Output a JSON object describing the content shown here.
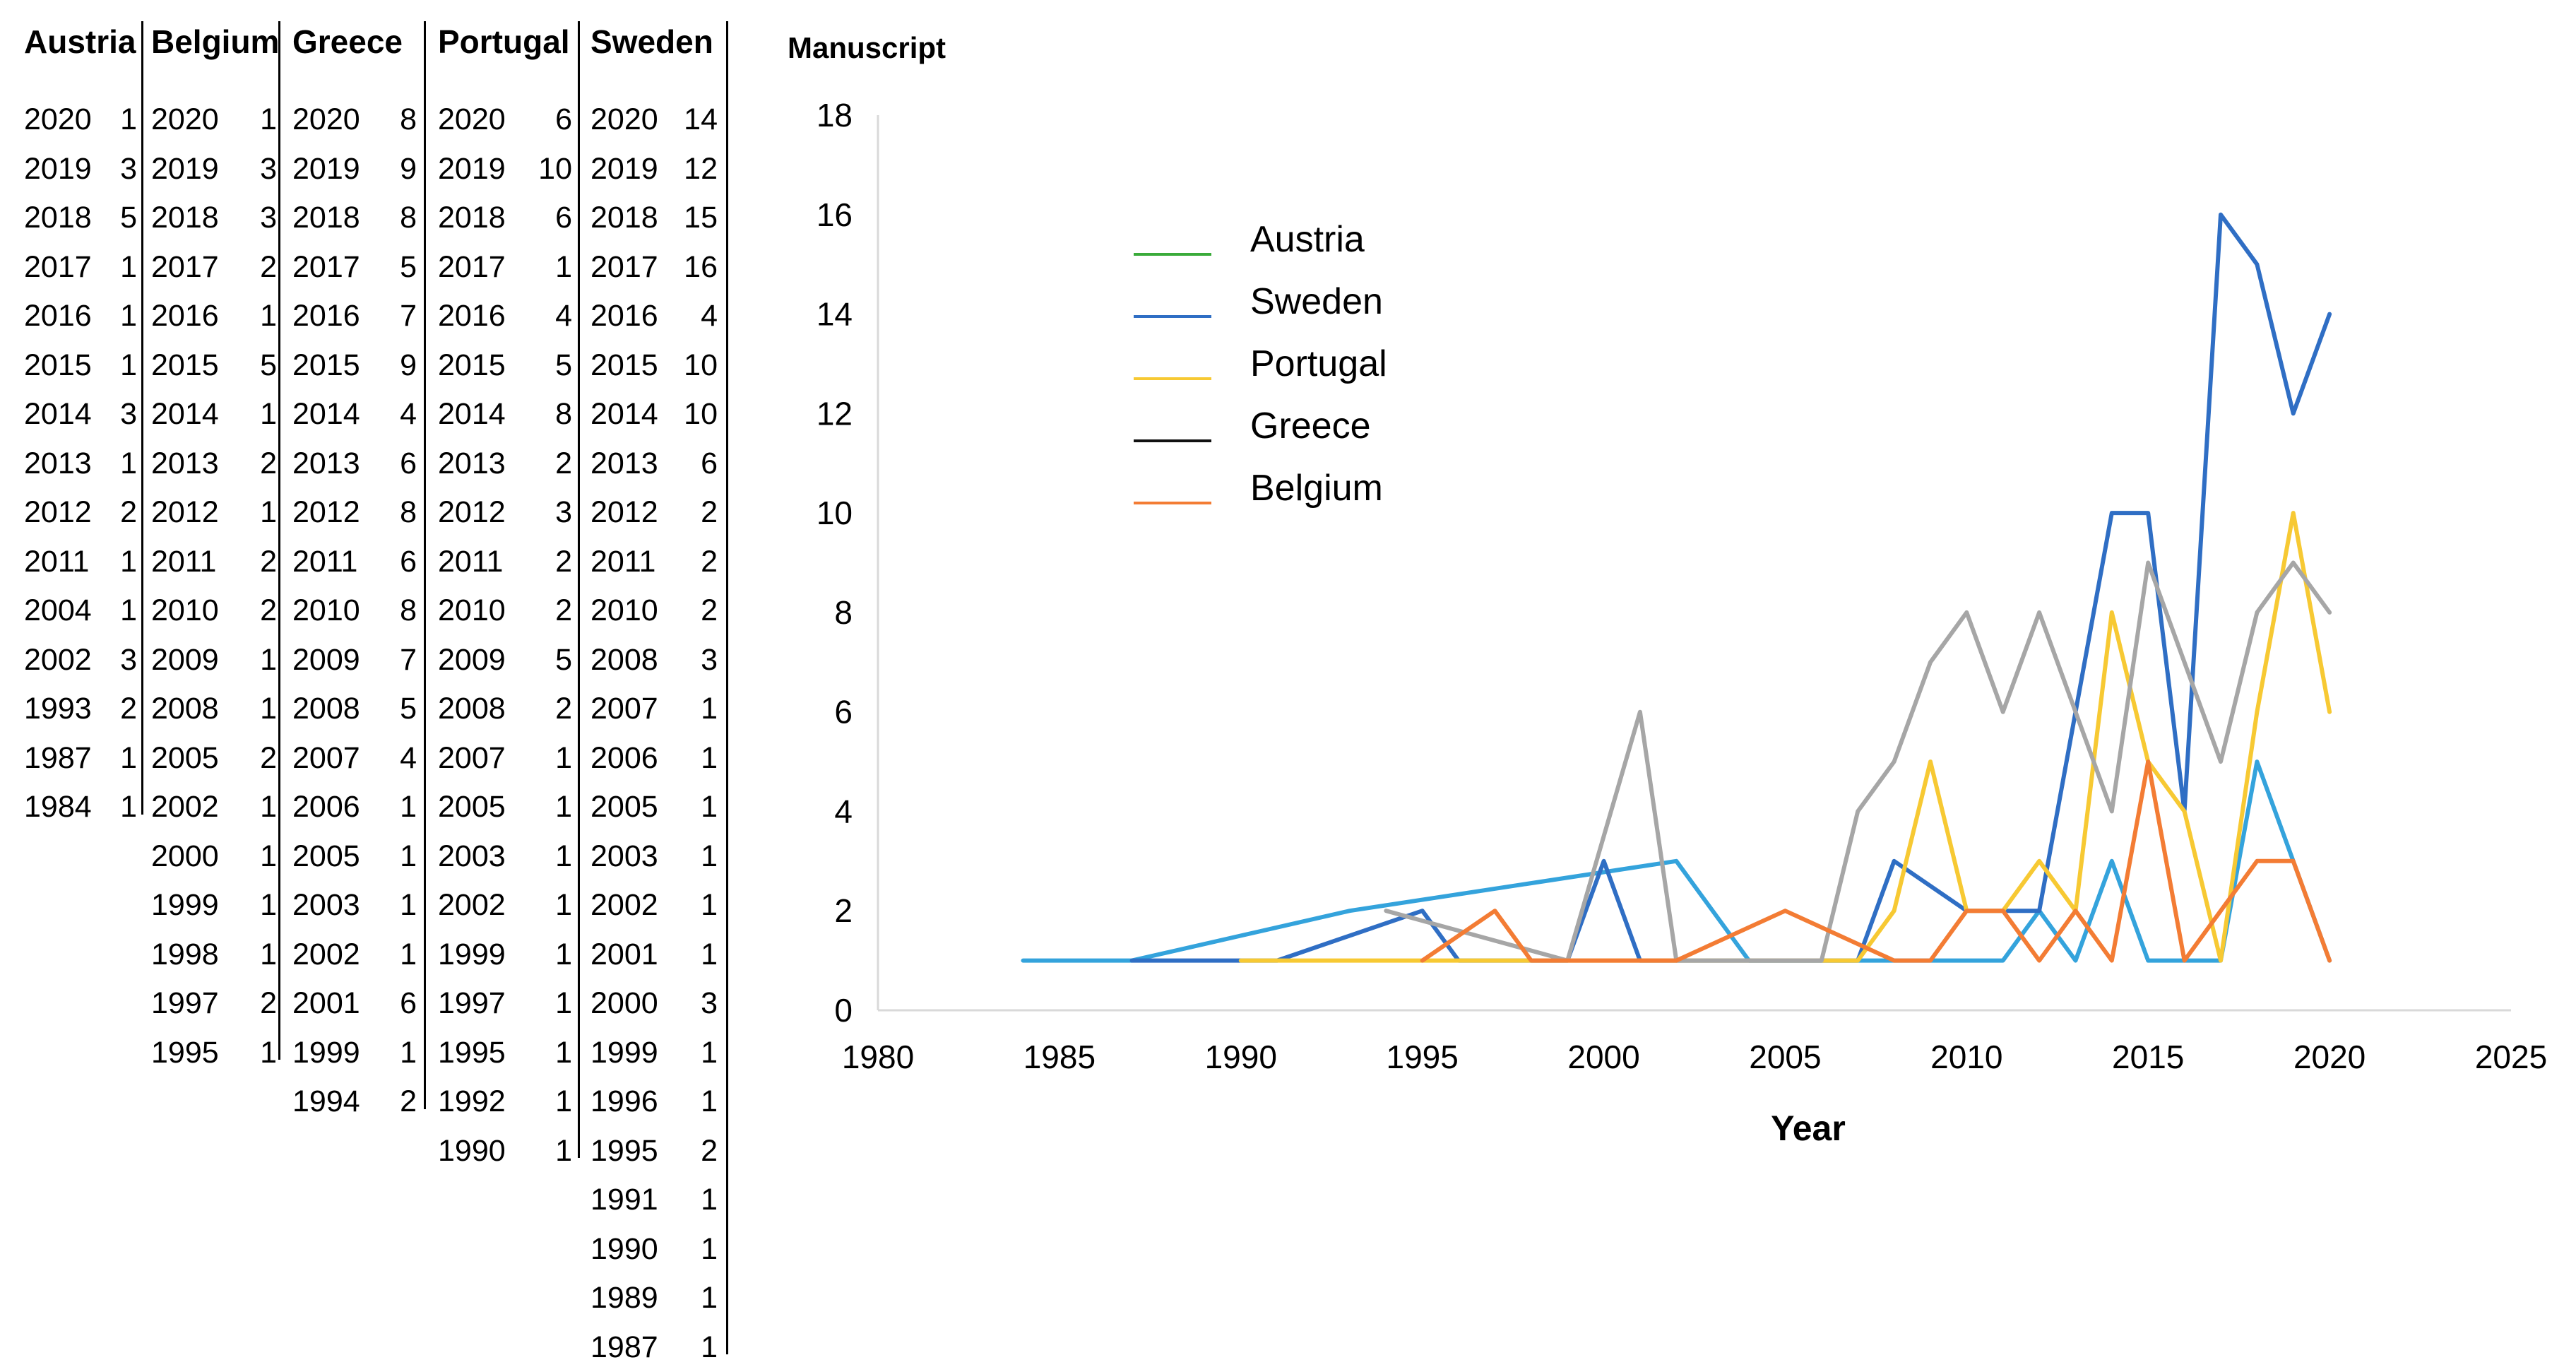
{
  "tables": [
    {
      "header": "Austria",
      "rows": [
        [
          "2020",
          "1"
        ],
        [
          "2019",
          "3"
        ],
        [
          "2018",
          "5"
        ],
        [
          "2017",
          "1"
        ],
        [
          "2016",
          "1"
        ],
        [
          "2015",
          "1"
        ],
        [
          "2014",
          "3"
        ],
        [
          "2013",
          "1"
        ],
        [
          "2012",
          "2"
        ],
        [
          "2011",
          "1"
        ],
        [
          "2004",
          "1"
        ],
        [
          "2002",
          "3"
        ],
        [
          "1993",
          "2"
        ],
        [
          "1987",
          "1"
        ],
        [
          "1984",
          "1"
        ]
      ]
    },
    {
      "header": "Belgium",
      "rows": [
        [
          "2020",
          "1"
        ],
        [
          "2019",
          "3"
        ],
        [
          "2018",
          "3"
        ],
        [
          "2017",
          "2"
        ],
        [
          "2016",
          "1"
        ],
        [
          "2015",
          "5"
        ],
        [
          "2014",
          "1"
        ],
        [
          "2013",
          "2"
        ],
        [
          "2012",
          "1"
        ],
        [
          "2011",
          "2"
        ],
        [
          "2010",
          "2"
        ],
        [
          "2009",
          "1"
        ],
        [
          "2008",
          "1"
        ],
        [
          "2005",
          "2"
        ],
        [
          "2002",
          "1"
        ],
        [
          "2000",
          "1"
        ],
        [
          "1999",
          "1"
        ],
        [
          "1998",
          "1"
        ],
        [
          "1997",
          "2"
        ],
        [
          "1995",
          "1"
        ]
      ]
    },
    {
      "header": "Greece",
      "rows": [
        [
          "2020",
          "8"
        ],
        [
          "2019",
          "9"
        ],
        [
          "2018",
          "8"
        ],
        [
          "2017",
          "5"
        ],
        [
          "2016",
          "7"
        ],
        [
          "2015",
          "9"
        ],
        [
          "2014",
          "4"
        ],
        [
          "2013",
          "6"
        ],
        [
          "2012",
          "8"
        ],
        [
          "2011",
          "6"
        ],
        [
          "2010",
          "8"
        ],
        [
          "2009",
          "7"
        ],
        [
          "2008",
          "5"
        ],
        [
          "2007",
          "4"
        ],
        [
          "2006",
          "1"
        ],
        [
          "2005",
          "1"
        ],
        [
          "2003",
          "1"
        ],
        [
          "2002",
          "1"
        ],
        [
          "2001",
          "6"
        ],
        [
          "1999",
          "1"
        ],
        [
          "1994",
          "2"
        ]
      ]
    },
    {
      "header": "Portugal",
      "rows": [
        [
          "2020",
          "6"
        ],
        [
          "2019",
          "10"
        ],
        [
          "2018",
          "6"
        ],
        [
          "2017",
          "1"
        ],
        [
          "2016",
          "4"
        ],
        [
          "2015",
          "5"
        ],
        [
          "2014",
          "8"
        ],
        [
          "2013",
          "2"
        ],
        [
          "2012",
          "3"
        ],
        [
          "2011",
          "2"
        ],
        [
          "2010",
          "2"
        ],
        [
          "2009",
          "5"
        ],
        [
          "2008",
          "2"
        ],
        [
          "2007",
          "1"
        ],
        [
          "2005",
          "1"
        ],
        [
          "2003",
          "1"
        ],
        [
          "2002",
          "1"
        ],
        [
          "1999",
          "1"
        ],
        [
          "1997",
          "1"
        ],
        [
          "1995",
          "1"
        ],
        [
          "1992",
          "1"
        ],
        [
          "1990",
          "1"
        ]
      ]
    },
    {
      "header": "Sweden",
      "rows": [
        [
          "2020",
          "14"
        ],
        [
          "2019",
          "12"
        ],
        [
          "2018",
          "15"
        ],
        [
          "2017",
          "16"
        ],
        [
          "2016",
          "4"
        ],
        [
          "2015",
          "10"
        ],
        [
          "2014",
          "10"
        ],
        [
          "2013",
          "6"
        ],
        [
          "2012",
          "2"
        ],
        [
          "2011",
          "2"
        ],
        [
          "2010",
          "2"
        ],
        [
          "2008",
          "3"
        ],
        [
          "2007",
          "1"
        ],
        [
          "2006",
          "1"
        ],
        [
          "2005",
          "1"
        ],
        [
          "2003",
          "1"
        ],
        [
          "2002",
          "1"
        ],
        [
          "2001",
          "1"
        ],
        [
          "2000",
          "3"
        ],
        [
          "1999",
          "1"
        ],
        [
          "1996",
          "1"
        ],
        [
          "1995",
          "2"
        ],
        [
          "1991",
          "1"
        ],
        [
          "1990",
          "1"
        ],
        [
          "1989",
          "1"
        ],
        [
          "1987",
          "1"
        ]
      ]
    }
  ],
  "chart_data": {
    "type": "line",
    "title": "Manuscript",
    "xlabel": "Year",
    "ylabel": "Manuscript",
    "xlim": [
      1980,
      2025
    ],
    "ylim": [
      0,
      18
    ],
    "xticks": [
      1980,
      1985,
      1990,
      1995,
      2000,
      2005,
      2010,
      2015,
      2020,
      2025
    ],
    "yticks": [
      0,
      2,
      4,
      6,
      8,
      10,
      12,
      14,
      16,
      18
    ],
    "grid": false,
    "legend": {
      "placement": "upper-left",
      "entries": [
        {
          "name": "Austria",
          "color": "#3aab3a"
        },
        {
          "name": "Sweden",
          "color": "#2f6ec4"
        },
        {
          "name": "Portugal",
          "color": "#f7c933"
        },
        {
          "name": "Greece",
          "color": "#111111"
        },
        {
          "name": "Belgium",
          "color": "#f37c34"
        }
      ]
    },
    "series": [
      {
        "name": "Austria",
        "color": "#34a3dc",
        "points": [
          [
            1984,
            1
          ],
          [
            1987,
            1
          ],
          [
            1993,
            2
          ],
          [
            2002,
            3
          ],
          [
            2004,
            1
          ],
          [
            2011,
            1
          ],
          [
            2012,
            2
          ],
          [
            2013,
            1
          ],
          [
            2014,
            3
          ],
          [
            2015,
            1
          ],
          [
            2016,
            1
          ],
          [
            2017,
            1
          ],
          [
            2018,
            5
          ],
          [
            2019,
            3
          ],
          [
            2020,
            1
          ]
        ]
      },
      {
        "name": "Sweden",
        "color": "#2f6ec4",
        "points": [
          [
            1987,
            1
          ],
          [
            1989,
            1
          ],
          [
            1990,
            1
          ],
          [
            1991,
            1
          ],
          [
            1995,
            2
          ],
          [
            1996,
            1
          ],
          [
            1999,
            1
          ],
          [
            2000,
            3
          ],
          [
            2001,
            1
          ],
          [
            2002,
            1
          ],
          [
            2003,
            1
          ],
          [
            2005,
            1
          ],
          [
            2006,
            1
          ],
          [
            2007,
            1
          ],
          [
            2008,
            3
          ],
          [
            2010,
            2
          ],
          [
            2011,
            2
          ],
          [
            2012,
            2
          ],
          [
            2013,
            6
          ],
          [
            2014,
            10
          ],
          [
            2015,
            10
          ],
          [
            2016,
            4
          ],
          [
            2017,
            16
          ],
          [
            2018,
            15
          ],
          [
            2019,
            12
          ],
          [
            2020,
            14
          ]
        ]
      },
      {
        "name": "Portugal",
        "color": "#f7c933",
        "points": [
          [
            1990,
            1
          ],
          [
            1992,
            1
          ],
          [
            1995,
            1
          ],
          [
            1997,
            1
          ],
          [
            1999,
            1
          ],
          [
            2002,
            1
          ],
          [
            2003,
            1
          ],
          [
            2005,
            1
          ],
          [
            2007,
            1
          ],
          [
            2008,
            2
          ],
          [
            2009,
            5
          ],
          [
            2010,
            2
          ],
          [
            2011,
            2
          ],
          [
            2012,
            3
          ],
          [
            2013,
            2
          ],
          [
            2014,
            8
          ],
          [
            2015,
            5
          ],
          [
            2016,
            4
          ],
          [
            2017,
            1
          ],
          [
            2018,
            6
          ],
          [
            2019,
            10
          ],
          [
            2020,
            6
          ]
        ]
      },
      {
        "name": "Greece",
        "color": "#a6a6a6",
        "points": [
          [
            1994,
            2
          ],
          [
            1999,
            1
          ],
          [
            2001,
            6
          ],
          [
            2002,
            1
          ],
          [
            2003,
            1
          ],
          [
            2005,
            1
          ],
          [
            2006,
            1
          ],
          [
            2007,
            4
          ],
          [
            2008,
            5
          ],
          [
            2009,
            7
          ],
          [
            2010,
            8
          ],
          [
            2011,
            6
          ],
          [
            2012,
            8
          ],
          [
            2013,
            6
          ],
          [
            2014,
            4
          ],
          [
            2015,
            9
          ],
          [
            2016,
            7
          ],
          [
            2017,
            5
          ],
          [
            2018,
            8
          ],
          [
            2019,
            9
          ],
          [
            2020,
            8
          ]
        ]
      },
      {
        "name": "Belgium",
        "color": "#f37c34",
        "points": [
          [
            1995,
            1
          ],
          [
            1997,
            2
          ],
          [
            1998,
            1
          ],
          [
            1999,
            1
          ],
          [
            2000,
            1
          ],
          [
            2002,
            1
          ],
          [
            2005,
            2
          ],
          [
            2008,
            1
          ],
          [
            2009,
            1
          ],
          [
            2010,
            2
          ],
          [
            2011,
            2
          ],
          [
            2012,
            1
          ],
          [
            2013,
            2
          ],
          [
            2014,
            1
          ],
          [
            2015,
            5
          ],
          [
            2016,
            1
          ],
          [
            2017,
            2
          ],
          [
            2018,
            3
          ],
          [
            2019,
            3
          ],
          [
            2020,
            1
          ]
        ]
      }
    ]
  }
}
